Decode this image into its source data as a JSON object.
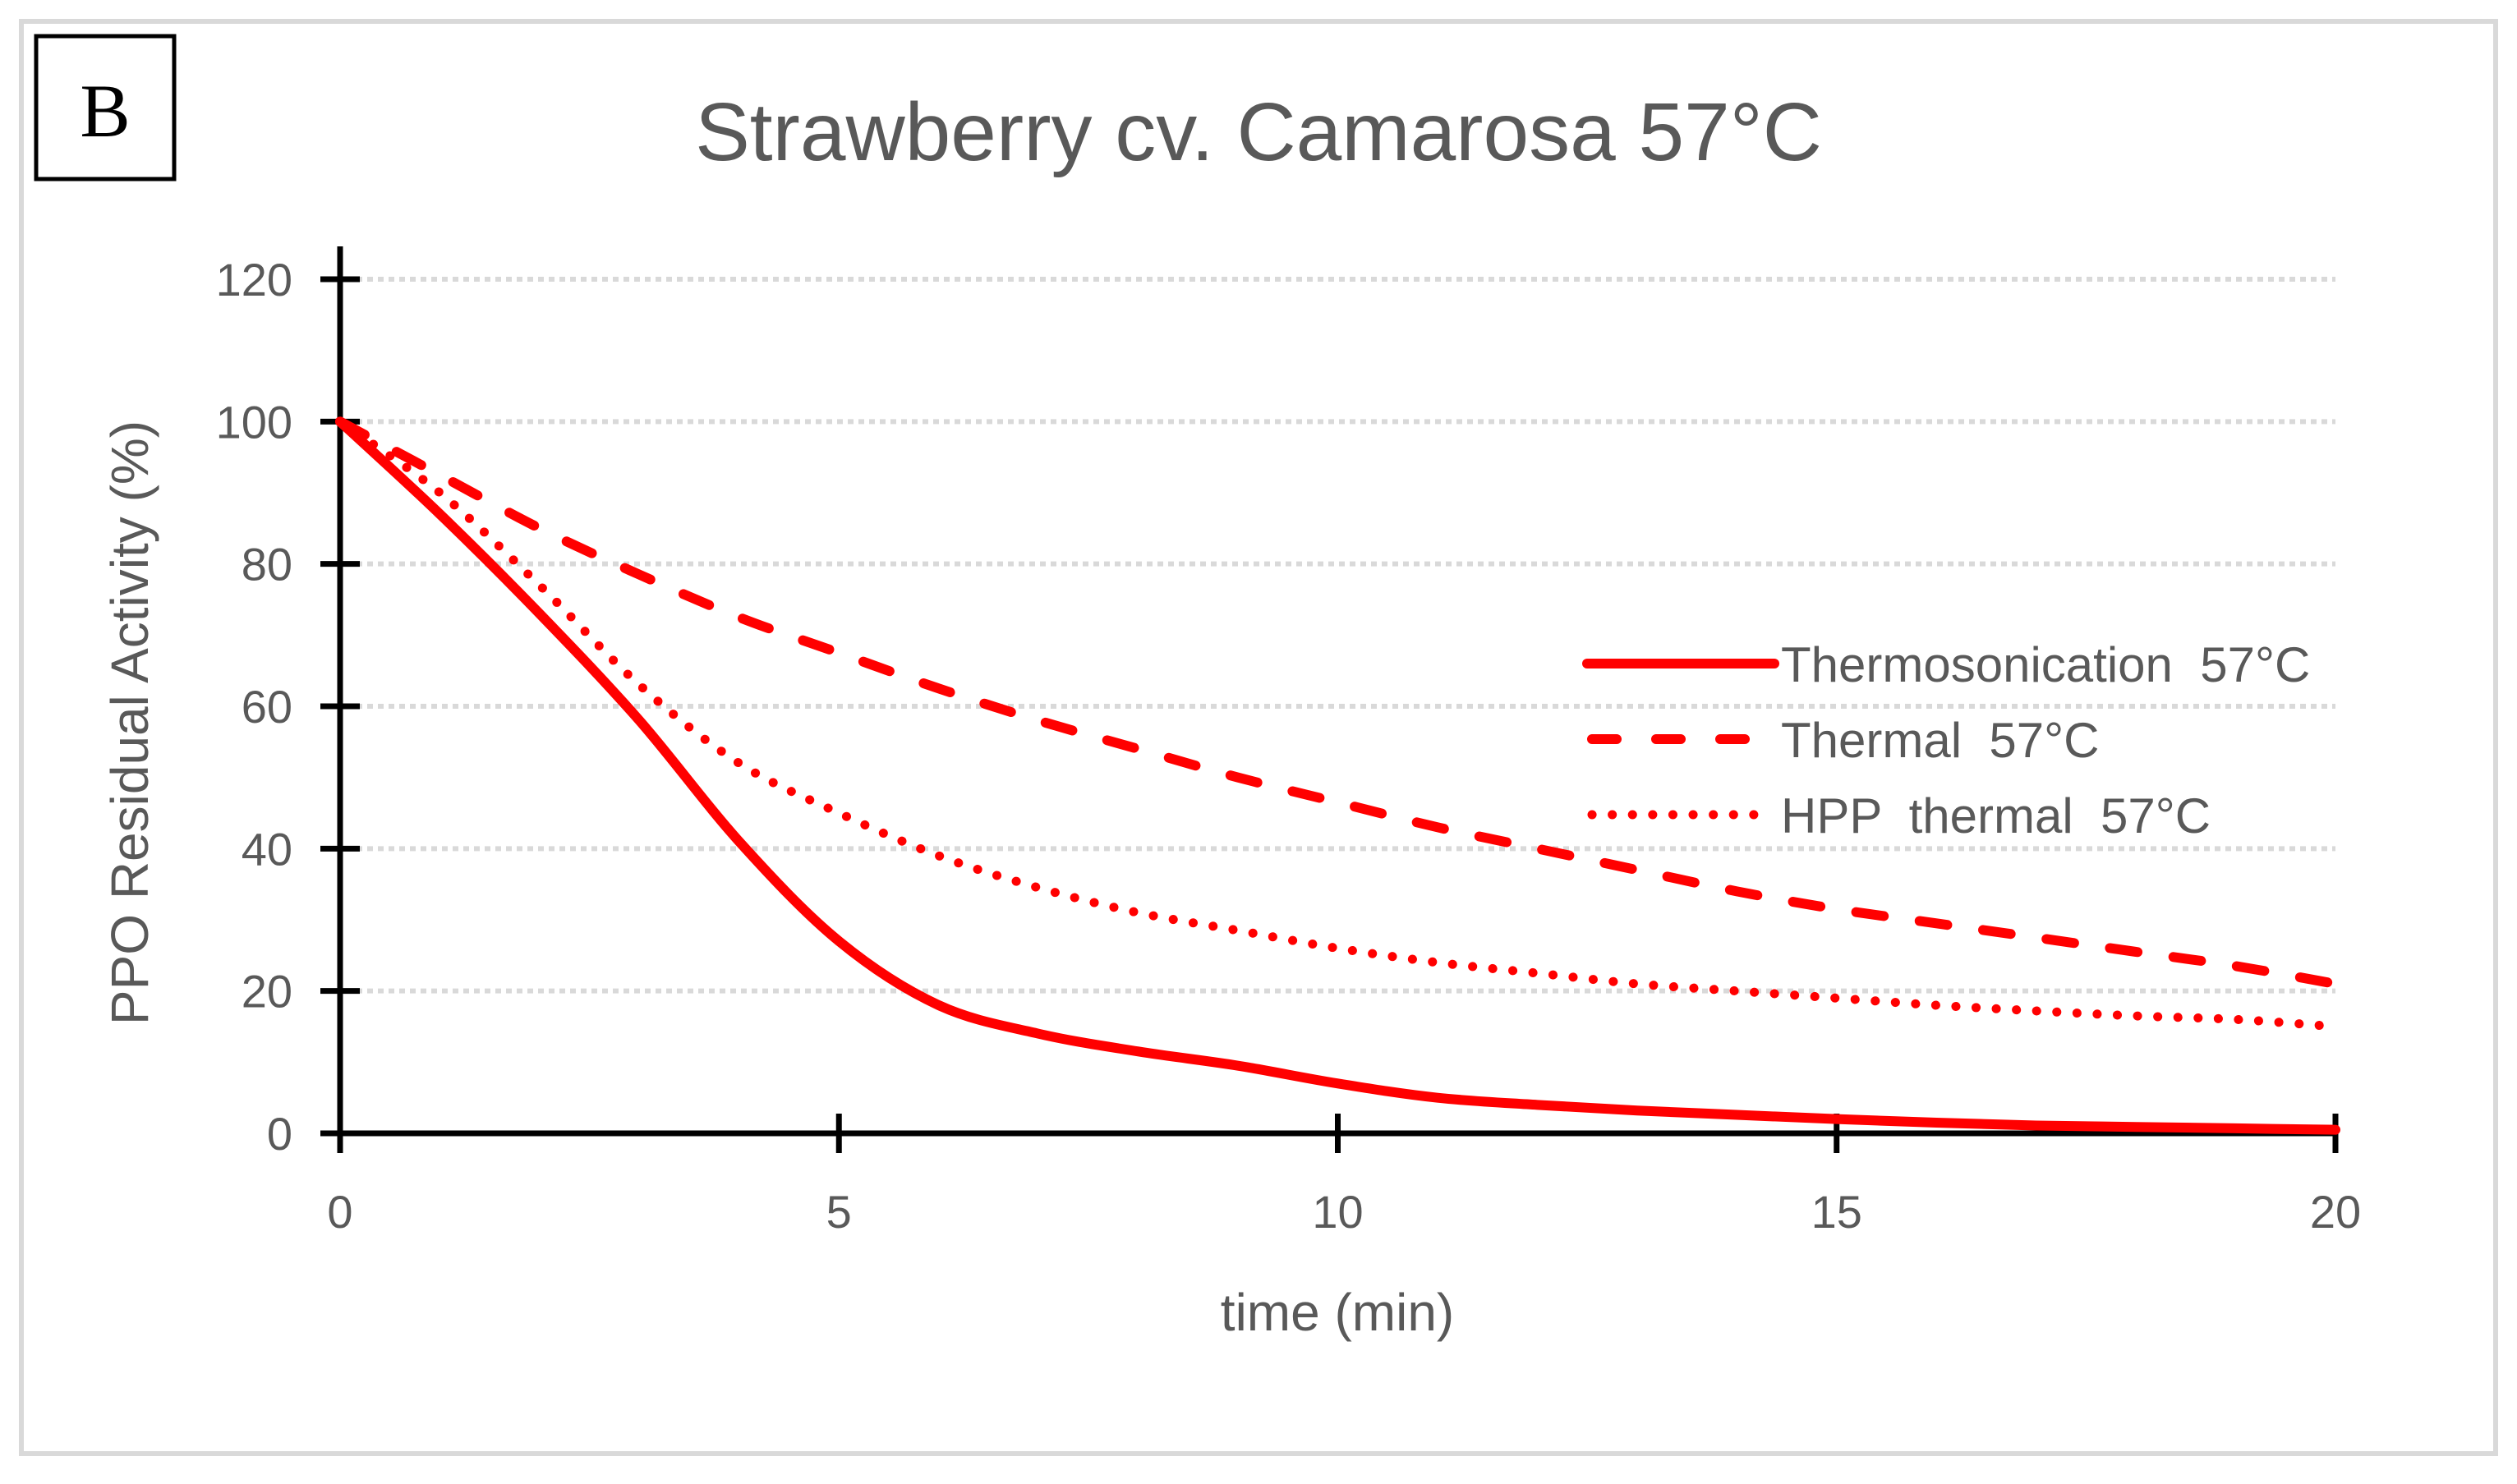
{
  "panel_label": "B",
  "chart_data": {
    "type": "line",
    "title": "Strawberry cv. Camarosa 57°C",
    "xlabel": "time (min)",
    "ylabel": "PPO Residual Activity (%)",
    "xlim": [
      0,
      20
    ],
    "ylim": [
      0,
      120
    ],
    "xticks": [
      0,
      5,
      10,
      15,
      20
    ],
    "yticks": [
      0,
      20,
      40,
      60,
      80,
      100,
      120
    ],
    "grid": "horizontal dotted",
    "legend_position": "right-middle",
    "x": [
      0,
      1,
      2,
      3,
      4,
      5,
      6,
      7,
      8,
      9,
      10,
      11,
      12,
      13,
      14,
      15,
      16,
      17,
      18,
      19,
      20
    ],
    "series": [
      {
        "name": "Thermosonication  57°C",
        "style": "solid",
        "color": "#ff0000",
        "values": [
          100,
          87,
          73,
          58,
          41,
          27,
          18,
          14,
          11.5,
          9.5,
          7,
          5,
          4,
          3.2,
          2.6,
          2,
          1.5,
          1.1,
          0.9,
          0.7,
          0.5
        ]
      },
      {
        "name": "Thermal  57°C",
        "style": "dashed",
        "color": "#ff0000",
        "values": [
          100,
          92.5,
          85,
          78.5,
          72.5,
          67.5,
          62.5,
          58,
          54,
          50,
          46.5,
          43,
          40,
          37,
          34,
          31.5,
          29.5,
          27.5,
          25.5,
          23.5,
          21
        ]
      },
      {
        "name": "HPP  thermal  57°C",
        "style": "dotted",
        "color": "#ff0000",
        "values": [
          100,
          90,
          77,
          63,
          52,
          45,
          39,
          34.5,
          31,
          28.5,
          26,
          24,
          22.5,
          21,
          20,
          19,
          18,
          17.2,
          16.5,
          16,
          15
        ]
      }
    ]
  }
}
